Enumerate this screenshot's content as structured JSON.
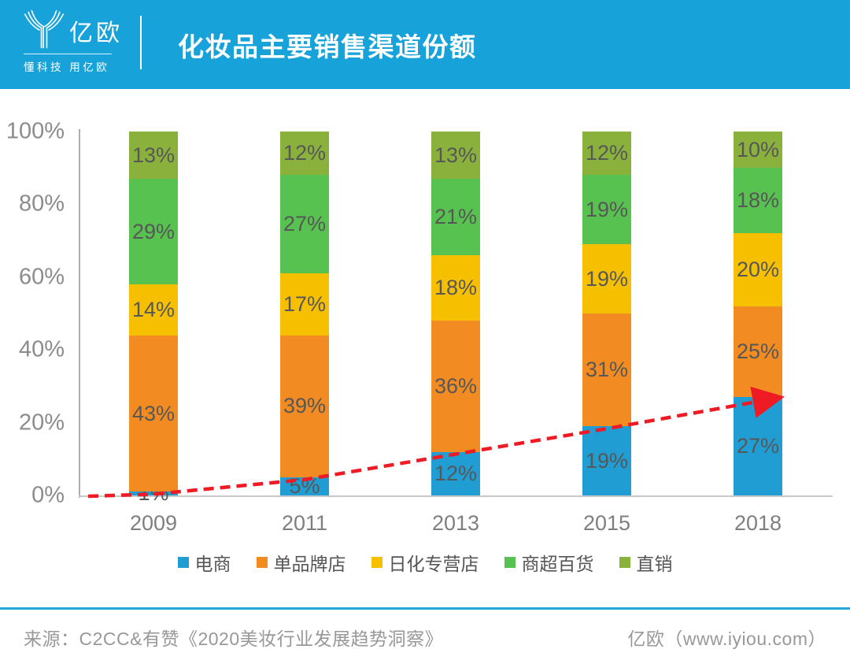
{
  "header": {
    "logo_text": "亿欧",
    "tagline": "懂科技 用亿欧",
    "title": "化妆品主要销售渠道份额",
    "bg_color": "#17A3DA"
  },
  "chart_data": {
    "type": "bar",
    "stacked": true,
    "title": "化妆品主要销售渠道份额",
    "categories": [
      "2009",
      "2011",
      "2013",
      "2015",
      "2018"
    ],
    "series": [
      {
        "name": "电商",
        "color": "#209DD2",
        "values": [
          1,
          5,
          12,
          19,
          27
        ]
      },
      {
        "name": "单品牌店",
        "color": "#F28C22",
        "values": [
          43,
          39,
          36,
          31,
          25
        ]
      },
      {
        "name": "日化专营店",
        "color": "#F6C000",
        "values": [
          14,
          17,
          18,
          19,
          20
        ]
      },
      {
        "name": "商超百货",
        "color": "#57C24F",
        "values": [
          29,
          27,
          21,
          19,
          18
        ]
      },
      {
        "name": "直销",
        "color": "#8BB13D",
        "values": [
          13,
          12,
          13,
          12,
          10
        ]
      }
    ],
    "y_ticks": [
      "0%",
      "20%",
      "40%",
      "60%",
      "80%",
      "100%"
    ],
    "ylim": [
      0,
      100
    ],
    "grid": false,
    "legend_position": "bottom",
    "data_label_suffix": "%",
    "trend_line": {
      "description": "red dashed arrow following tops of 电商 segments",
      "color": "#EE1B24",
      "style": "dashed",
      "values": [
        1,
        5,
        12,
        19,
        27
      ]
    }
  },
  "footer": {
    "source": "来源：C2CC&有赞《2020美妆行业发展趋势洞察》",
    "credit": "亿欧（www.iyiou.com）"
  }
}
